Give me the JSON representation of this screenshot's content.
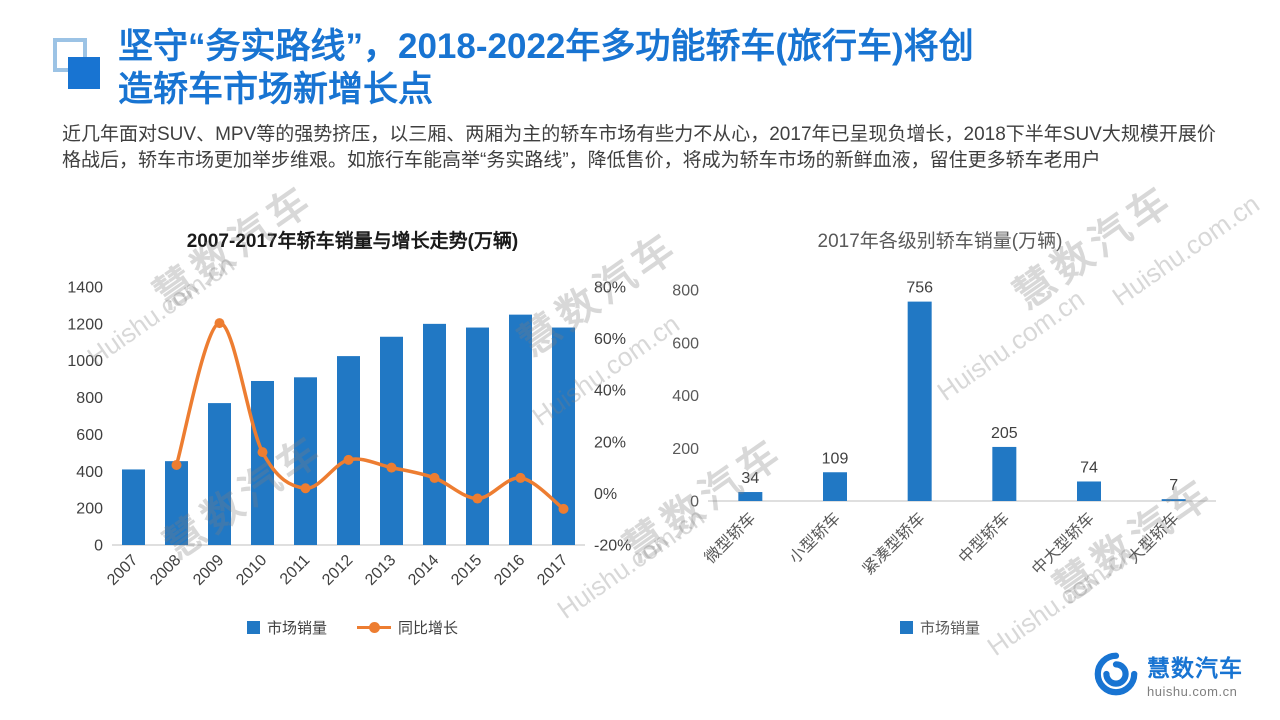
{
  "slide": {
    "title_lines": [
      "坚守“务实路线”，2018-2022年多功能轿车(旅行车)将创",
      "造轿车市场新增长点"
    ],
    "body_text": "近几年面对SUV、MPV等的强势挤压，以三厢、两厢为主的轿车市场有些力不从心，2017年已呈现负增长，2018下半年SUV大规模开展价格战后，轿车市场更加举步维艰。如旅行车能高举“务实路线”，降低售价，将成为轿车市场的新鲜血液，留住更多轿车老用户"
  },
  "colors": {
    "accent_blue": "#1874D2",
    "bar_blue": "#2178C4",
    "line_orange": "#ED7D31",
    "deco_light_blue": "#9CC3E5"
  },
  "watermark": {
    "cn": "慧数汽车",
    "en": "Huishu.com.cn"
  },
  "logo": {
    "name": "慧数汽车",
    "url": "huishu.com.cn"
  },
  "chart_data": [
    {
      "type": "bar",
      "title": "2007-2017年轿车销量与增长走势(万辆)",
      "categories": [
        "2007",
        "2008",
        "2009",
        "2010",
        "2011",
        "2012",
        "2013",
        "2014",
        "2015",
        "2016",
        "2017"
      ],
      "series": [
        {
          "name": "市场销量",
          "type": "bar",
          "axis": "left",
          "values": [
            410,
            455,
            770,
            890,
            910,
            1025,
            1130,
            1200,
            1180,
            1250,
            1180
          ]
        },
        {
          "name": "同比增长",
          "type": "line",
          "axis": "right",
          "unit": "%",
          "values": [
            null,
            11,
            66,
            16,
            2,
            13,
            10,
            6,
            -2,
            6,
            -6
          ]
        }
      ],
      "y_left": {
        "min": 0,
        "max": 1400,
        "step": 200
      },
      "y_right": {
        "min": -20,
        "max": 80,
        "step": 20,
        "suffix": "%"
      },
      "grid": false,
      "legend_position": "bottom"
    },
    {
      "type": "bar",
      "title": "2017年各级别轿车销量(万辆)",
      "categories": [
        "微型轿车",
        "小型轿车",
        "紧凑型轿车",
        "中型轿车",
        "中大型轿车",
        "大型轿车"
      ],
      "values": [
        34,
        109,
        756,
        205,
        74,
        7
      ],
      "series_name": "市场销量",
      "ylim": [
        0,
        800
      ],
      "ystep": 200,
      "data_labels": true,
      "grid": false,
      "legend_position": "bottom"
    }
  ]
}
